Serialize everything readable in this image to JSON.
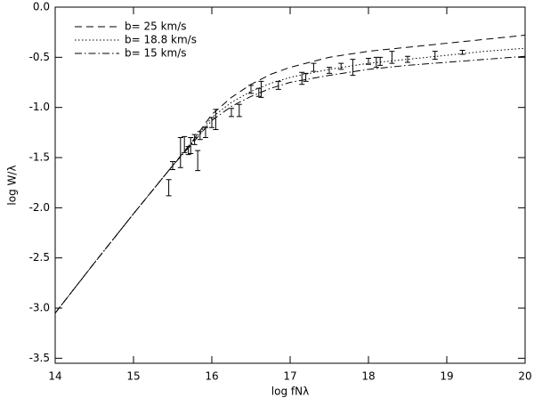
{
  "chart_data": {
    "type": "line",
    "xlabel": "log fNλ",
    "ylabel": "log W/λ",
    "xlim": [
      14,
      20
    ],
    "ylim": [
      -3.55,
      0
    ],
    "xticks": [
      14,
      15,
      16,
      17,
      18,
      19,
      20
    ],
    "yticks": [
      {
        "value": 0,
        "label": "0.0"
      },
      -0.5,
      {
        "value": -1,
        "label": "-1.0"
      },
      -1.5,
      {
        "value": -2,
        "label": "-2.0"
      },
      -2.5,
      {
        "value": -3,
        "label": "-3.0"
      },
      -3.5
    ],
    "legend": "upper left",
    "x": [
      14,
      14.5,
      15,
      15.5,
      15.75,
      16,
      16.25,
      16.5,
      16.75,
      17,
      17.5,
      18,
      18.5,
      19,
      19.5,
      20
    ],
    "series": [
      {
        "name": "b= 25 km/s",
        "color": "#000000",
        "dash": "8,5",
        "values": [
          -3.05,
          -2.55,
          -2.06,
          -1.58,
          -1.34,
          -1.07,
          -0.9,
          -0.77,
          -0.67,
          -0.6,
          -0.5,
          -0.44,
          -0.4,
          -0.36,
          -0.32,
          -0.28
        ]
      },
      {
        "name": "b= 18.8 km/s",
        "color": "#000000",
        "dash": "1.5,2.5",
        "values": [
          -3.05,
          -2.55,
          -2.06,
          -1.58,
          -1.35,
          -1.1,
          -0.95,
          -0.84,
          -0.76,
          -0.7,
          -0.62,
          -0.56,
          -0.52,
          -0.48,
          -0.44,
          -0.41
        ]
      },
      {
        "name": "b= 15 km/s",
        "color": "#000000",
        "dash": "8,3,1.5,3",
        "values": [
          -3.05,
          -2.55,
          -2.06,
          -1.58,
          -1.36,
          -1.13,
          -0.99,
          -0.89,
          -0.81,
          -0.75,
          -0.68,
          -0.62,
          -0.58,
          -0.55,
          -0.52,
          -0.49
        ]
      }
    ],
    "points": {
      "color": "#000000",
      "x": [
        15.45,
        15.5,
        15.6,
        15.65,
        15.7,
        15.73,
        15.78,
        15.82,
        15.85,
        15.92,
        16.0,
        16.05,
        16.25,
        16.35,
        16.5,
        16.6,
        16.63,
        16.85,
        17.15,
        17.2,
        17.3,
        17.5,
        17.65,
        17.8,
        18.0,
        18.1,
        18.15,
        18.3,
        18.5,
        18.85,
        19.2
      ],
      "values": [
        -1.8,
        -1.58,
        -1.45,
        -1.37,
        -1.43,
        -1.38,
        -1.32,
        -1.53,
        -1.28,
        -1.25,
        -1.15,
        -1.12,
        -1.05,
        -1.03,
        -0.82,
        -0.85,
        -0.82,
        -0.78,
        -0.71,
        -0.7,
        -0.6,
        -0.63,
        -0.59,
        -0.6,
        -0.54,
        -0.55,
        -0.54,
        -0.5,
        -0.52,
        -0.48,
        -0.45
      ],
      "errors": [
        0.08,
        0.04,
        0.15,
        0.08,
        0.04,
        0.08,
        0.05,
        0.1,
        0.04,
        0.05,
        0.05,
        0.1,
        0.04,
        0.06,
        0.04,
        0.04,
        0.08,
        0.04,
        0.06,
        0.04,
        0.04,
        0.03,
        0.03,
        0.08,
        0.03,
        0.05,
        0.04,
        0.06,
        0.03,
        0.04,
        0.02
      ]
    }
  }
}
